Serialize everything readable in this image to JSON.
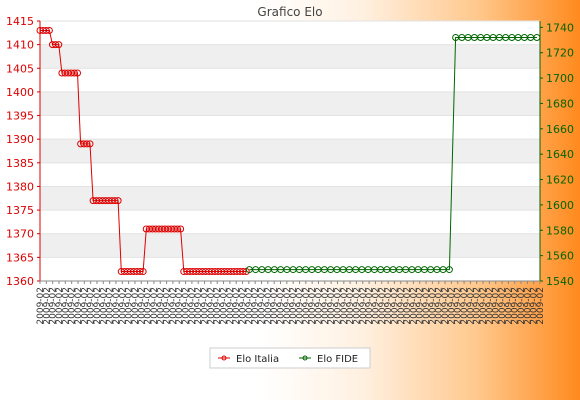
{
  "chart_data": {
    "type": "line",
    "title": "Grafico Elo",
    "x_tick_label": "2009-02",
    "x_tick_count": 80,
    "series": [
      {
        "name": "Elo Italia",
        "color": "#dd0000",
        "axis": "left",
        "points": [
          [
            0,
            1413
          ],
          [
            1,
            1413
          ],
          [
            2,
            1413
          ],
          [
            3,
            1413
          ],
          [
            4,
            1410
          ],
          [
            5,
            1410
          ],
          [
            6,
            1410
          ],
          [
            7,
            1404
          ],
          [
            8,
            1404
          ],
          [
            9,
            1404
          ],
          [
            10,
            1404
          ],
          [
            11,
            1404
          ],
          [
            12,
            1404
          ],
          [
            13,
            1389
          ],
          [
            14,
            1389
          ],
          [
            15,
            1389
          ],
          [
            16,
            1389
          ],
          [
            17,
            1377
          ],
          [
            18,
            1377
          ],
          [
            19,
            1377
          ],
          [
            20,
            1377
          ],
          [
            21,
            1377
          ],
          [
            22,
            1377
          ],
          [
            23,
            1377
          ],
          [
            24,
            1377
          ],
          [
            25,
            1377
          ],
          [
            26,
            1362
          ],
          [
            27,
            1362
          ],
          [
            28,
            1362
          ],
          [
            29,
            1362
          ],
          [
            30,
            1362
          ],
          [
            31,
            1362
          ],
          [
            32,
            1362
          ],
          [
            33,
            1362
          ],
          [
            34,
            1371
          ],
          [
            35,
            1371
          ],
          [
            36,
            1371
          ],
          [
            37,
            1371
          ],
          [
            38,
            1371
          ],
          [
            39,
            1371
          ],
          [
            40,
            1371
          ],
          [
            41,
            1371
          ],
          [
            42,
            1371
          ],
          [
            43,
            1371
          ],
          [
            44,
            1371
          ],
          [
            45,
            1371
          ],
          [
            46,
            1362
          ],
          [
            47,
            1362
          ],
          [
            48,
            1362
          ],
          [
            49,
            1362
          ],
          [
            50,
            1362
          ],
          [
            51,
            1362
          ],
          [
            52,
            1362
          ],
          [
            53,
            1362
          ],
          [
            54,
            1362
          ],
          [
            55,
            1362
          ],
          [
            56,
            1362
          ],
          [
            57,
            1362
          ],
          [
            58,
            1362
          ],
          [
            59,
            1362
          ],
          [
            60,
            1362
          ],
          [
            61,
            1362
          ],
          [
            62,
            1362
          ],
          [
            63,
            1362
          ],
          [
            64,
            1362
          ],
          [
            65,
            1362
          ],
          [
            66,
            1362
          ]
        ]
      },
      {
        "name": "Elo FIDE",
        "color": "#006600",
        "axis": "right",
        "points": [
          [
            67,
            1549
          ],
          [
            69,
            1549
          ],
          [
            71,
            1549
          ],
          [
            73,
            1549
          ],
          [
            75,
            1549
          ],
          [
            77,
            1549
          ],
          [
            79,
            1549
          ],
          [
            81,
            1549
          ],
          [
            83,
            1549
          ],
          [
            85,
            1549
          ],
          [
            87,
            1549
          ],
          [
            89,
            1549
          ],
          [
            91,
            1549
          ],
          [
            93,
            1549
          ],
          [
            95,
            1549
          ],
          [
            97,
            1549
          ],
          [
            99,
            1549
          ],
          [
            101,
            1549
          ],
          [
            103,
            1549
          ],
          [
            105,
            1549
          ],
          [
            107,
            1549
          ],
          [
            109,
            1549
          ],
          [
            111,
            1549
          ],
          [
            113,
            1549
          ],
          [
            115,
            1549
          ],
          [
            117,
            1549
          ],
          [
            119,
            1549
          ],
          [
            121,
            1549
          ],
          [
            123,
            1549
          ],
          [
            125,
            1549
          ],
          [
            127,
            1549
          ],
          [
            129,
            1549
          ],
          [
            131,
            1549
          ],
          [
            133,
            1732
          ],
          [
            135,
            1732
          ],
          [
            137,
            1732
          ],
          [
            139,
            1732
          ],
          [
            141,
            1732
          ],
          [
            143,
            1732
          ],
          [
            145,
            1732
          ],
          [
            147,
            1732
          ],
          [
            149,
            1732
          ],
          [
            151,
            1732
          ],
          [
            153,
            1732
          ],
          [
            155,
            1732
          ],
          [
            157,
            1732
          ],
          [
            159,
            1732
          ]
        ]
      }
    ],
    "x_range": [
      0,
      160
    ],
    "y_left": {
      "range": [
        1360,
        1415
      ],
      "ticks": [
        1360,
        1365,
        1370,
        1375,
        1380,
        1385,
        1390,
        1395,
        1400,
        1405,
        1410,
        1415
      ],
      "color": "#dd0000"
    },
    "y_right": {
      "range": [
        1540,
        1745
      ],
      "ticks": [
        1540,
        1560,
        1580,
        1600,
        1620,
        1640,
        1660,
        1680,
        1700,
        1720,
        1740
      ],
      "color": "#006600"
    },
    "grid": "horizontal alternating bands",
    "legend_placement": "bottom-center"
  }
}
